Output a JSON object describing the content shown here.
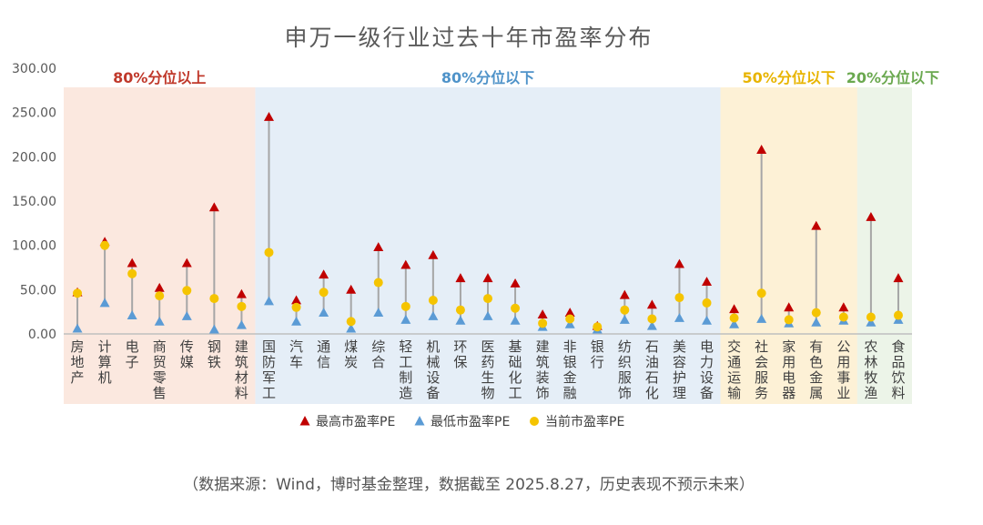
{
  "chart_data": {
    "type": "range",
    "title": "申万一级行业过去十年市盈率分布",
    "source_note": "（数据来源：Wind，博时基金整理，数据截至 2025.8.27，历史表现不预示未来）",
    "yticks": [
      "300.00",
      "250.00",
      "200.00",
      "150.00",
      "100.00",
      "50.00",
      "0.00"
    ],
    "ylim": [
      0,
      300
    ],
    "groups": [
      {
        "label": "80%分位以上",
        "color": "#c0392b",
        "bg": "#fbe8df",
        "start": 0,
        "end": 6
      },
      {
        "label": "80%分位以下",
        "color": "#4f93c9",
        "bg": "#e5eef7",
        "start": 7,
        "end": 23
      },
      {
        "label": "50%分位以下",
        "color": "#e8b400",
        "bg": "#fdf1d6",
        "start": 24,
        "end": 28
      },
      {
        "label": "20%分位以下",
        "color": "#6aa84f",
        "bg": "#ecf4e8",
        "start": 29,
        "end": 30
      }
    ],
    "categories": [
      "房地产",
      "计算机",
      "电子",
      "商贸零售",
      "传媒",
      "钢铁",
      "建筑材料",
      "国防军工",
      "汽车",
      "通信",
      "煤炭",
      "综合",
      "轻工制造",
      "机械设备",
      "环保",
      "医药生物",
      "基础化工",
      "建筑装饰",
      "非银金融",
      "银行",
      "纺织服饰",
      "石油石化",
      "美容护理",
      "电力设备",
      "交通运输",
      "社会服务",
      "家用电器",
      "有色金属",
      "公用事业",
      "农林牧渔",
      "食品饮料"
    ],
    "series": [
      {
        "name": "最高市盈率PE",
        "color": "#c00000",
        "marker": "triangle",
        "values": [
          47,
          104,
          80,
          52,
          80,
          143,
          45,
          245,
          38,
          67,
          50,
          98,
          78,
          89,
          63,
          63,
          57,
          22,
          24,
          9,
          44,
          33,
          79,
          59,
          28,
          208,
          30,
          122,
          30,
          132,
          63
        ]
      },
      {
        "name": "最低市盈率PE",
        "color": "#5b9bd5",
        "marker": "triangle",
        "values": [
          6,
          35,
          21,
          14,
          20,
          5,
          10,
          37,
          14,
          24,
          6,
          24,
          16,
          20,
          15,
          20,
          15,
          8,
          11,
          5,
          16,
          9,
          18,
          15,
          11,
          17,
          12,
          13,
          15,
          13,
          16
        ]
      },
      {
        "name": "当前市盈率PE",
        "color": "#f5c400",
        "marker": "circle",
        "values": [
          46,
          100,
          68,
          43,
          49,
          40,
          31,
          92,
          30,
          47,
          14,
          58,
          31,
          38,
          27,
          40,
          29,
          12,
          17,
          8,
          27,
          17,
          41,
          35,
          18,
          46,
          16,
          24,
          19,
          19,
          21
        ]
      }
    ]
  }
}
